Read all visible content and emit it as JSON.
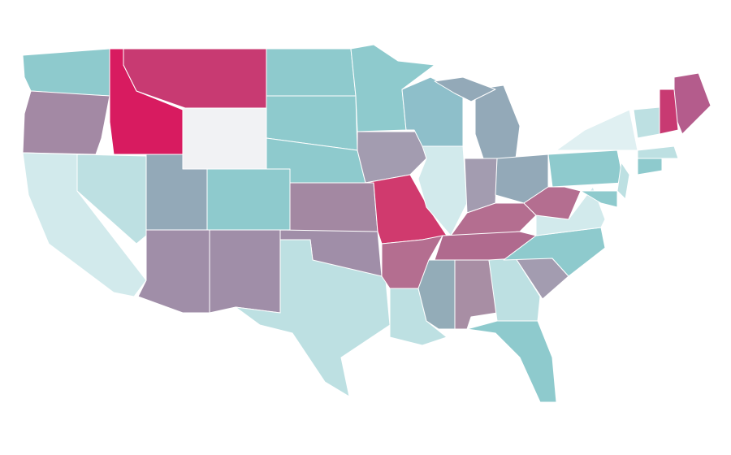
{
  "map": {
    "regions": [
      {
        "fill": "#8ecacd"
      },
      {
        "fill": "#a389a4"
      },
      {
        "fill": "#d2eaec"
      },
      {
        "fill": "#bde0e2"
      },
      {
        "fill": "#d81b60"
      },
      {
        "fill": "#c83a72"
      },
      {
        "fill": "#f1f2f4"
      },
      {
        "fill": "#93a9b8"
      },
      {
        "fill": "#8ecacd"
      },
      {
        "fill": "#a08ea8"
      },
      {
        "fill": "#a08ea8"
      },
      {
        "fill": "#8ecacd"
      },
      {
        "fill": "#8ecacd"
      },
      {
        "fill": "#8ecacd"
      },
      {
        "fill": "#a388a2"
      },
      {
        "fill": "#a08ea8"
      },
      {
        "fill": "#bde0e2"
      },
      {
        "fill": "#8ecacd"
      },
      {
        "fill": "#a39cb0"
      },
      {
        "fill": "#d03a6e"
      },
      {
        "fill": "#b46e90"
      },
      {
        "fill": "#bde0e2"
      },
      {
        "fill": "#8ebfca"
      },
      {
        "fill": "#d2eaec"
      },
      {
        "fill": "#93a9b8"
      },
      {
        "fill": "#93a9b8"
      },
      {
        "fill": "#a39cb0"
      },
      {
        "fill": "#93a9b8"
      },
      {
        "fill": "#b46e90"
      },
      {
        "fill": "#b06a8e"
      },
      {
        "fill": "#93acb8"
      },
      {
        "fill": "#a88ea4"
      },
      {
        "fill": "#bde0e2"
      },
      {
        "fill": "#8ecacd"
      },
      {
        "fill": "#a39cb0"
      },
      {
        "fill": "#8ecacd"
      },
      {
        "fill": "#d2eaec"
      },
      {
        "fill": "#b46e90"
      },
      {
        "fill": "#8ecacd"
      },
      {
        "fill": "#e0f0f2"
      },
      {
        "fill": "#b45c8c"
      },
      {
        "fill": "#c83a72"
      },
      {
        "fill": "#bde0e2"
      },
      {
        "fill": "#bde0e2"
      },
      {
        "fill": "#8ecacd"
      },
      {
        "fill": "#bde0e2"
      },
      {
        "fill": "#8ecacd"
      }
    ]
  }
}
